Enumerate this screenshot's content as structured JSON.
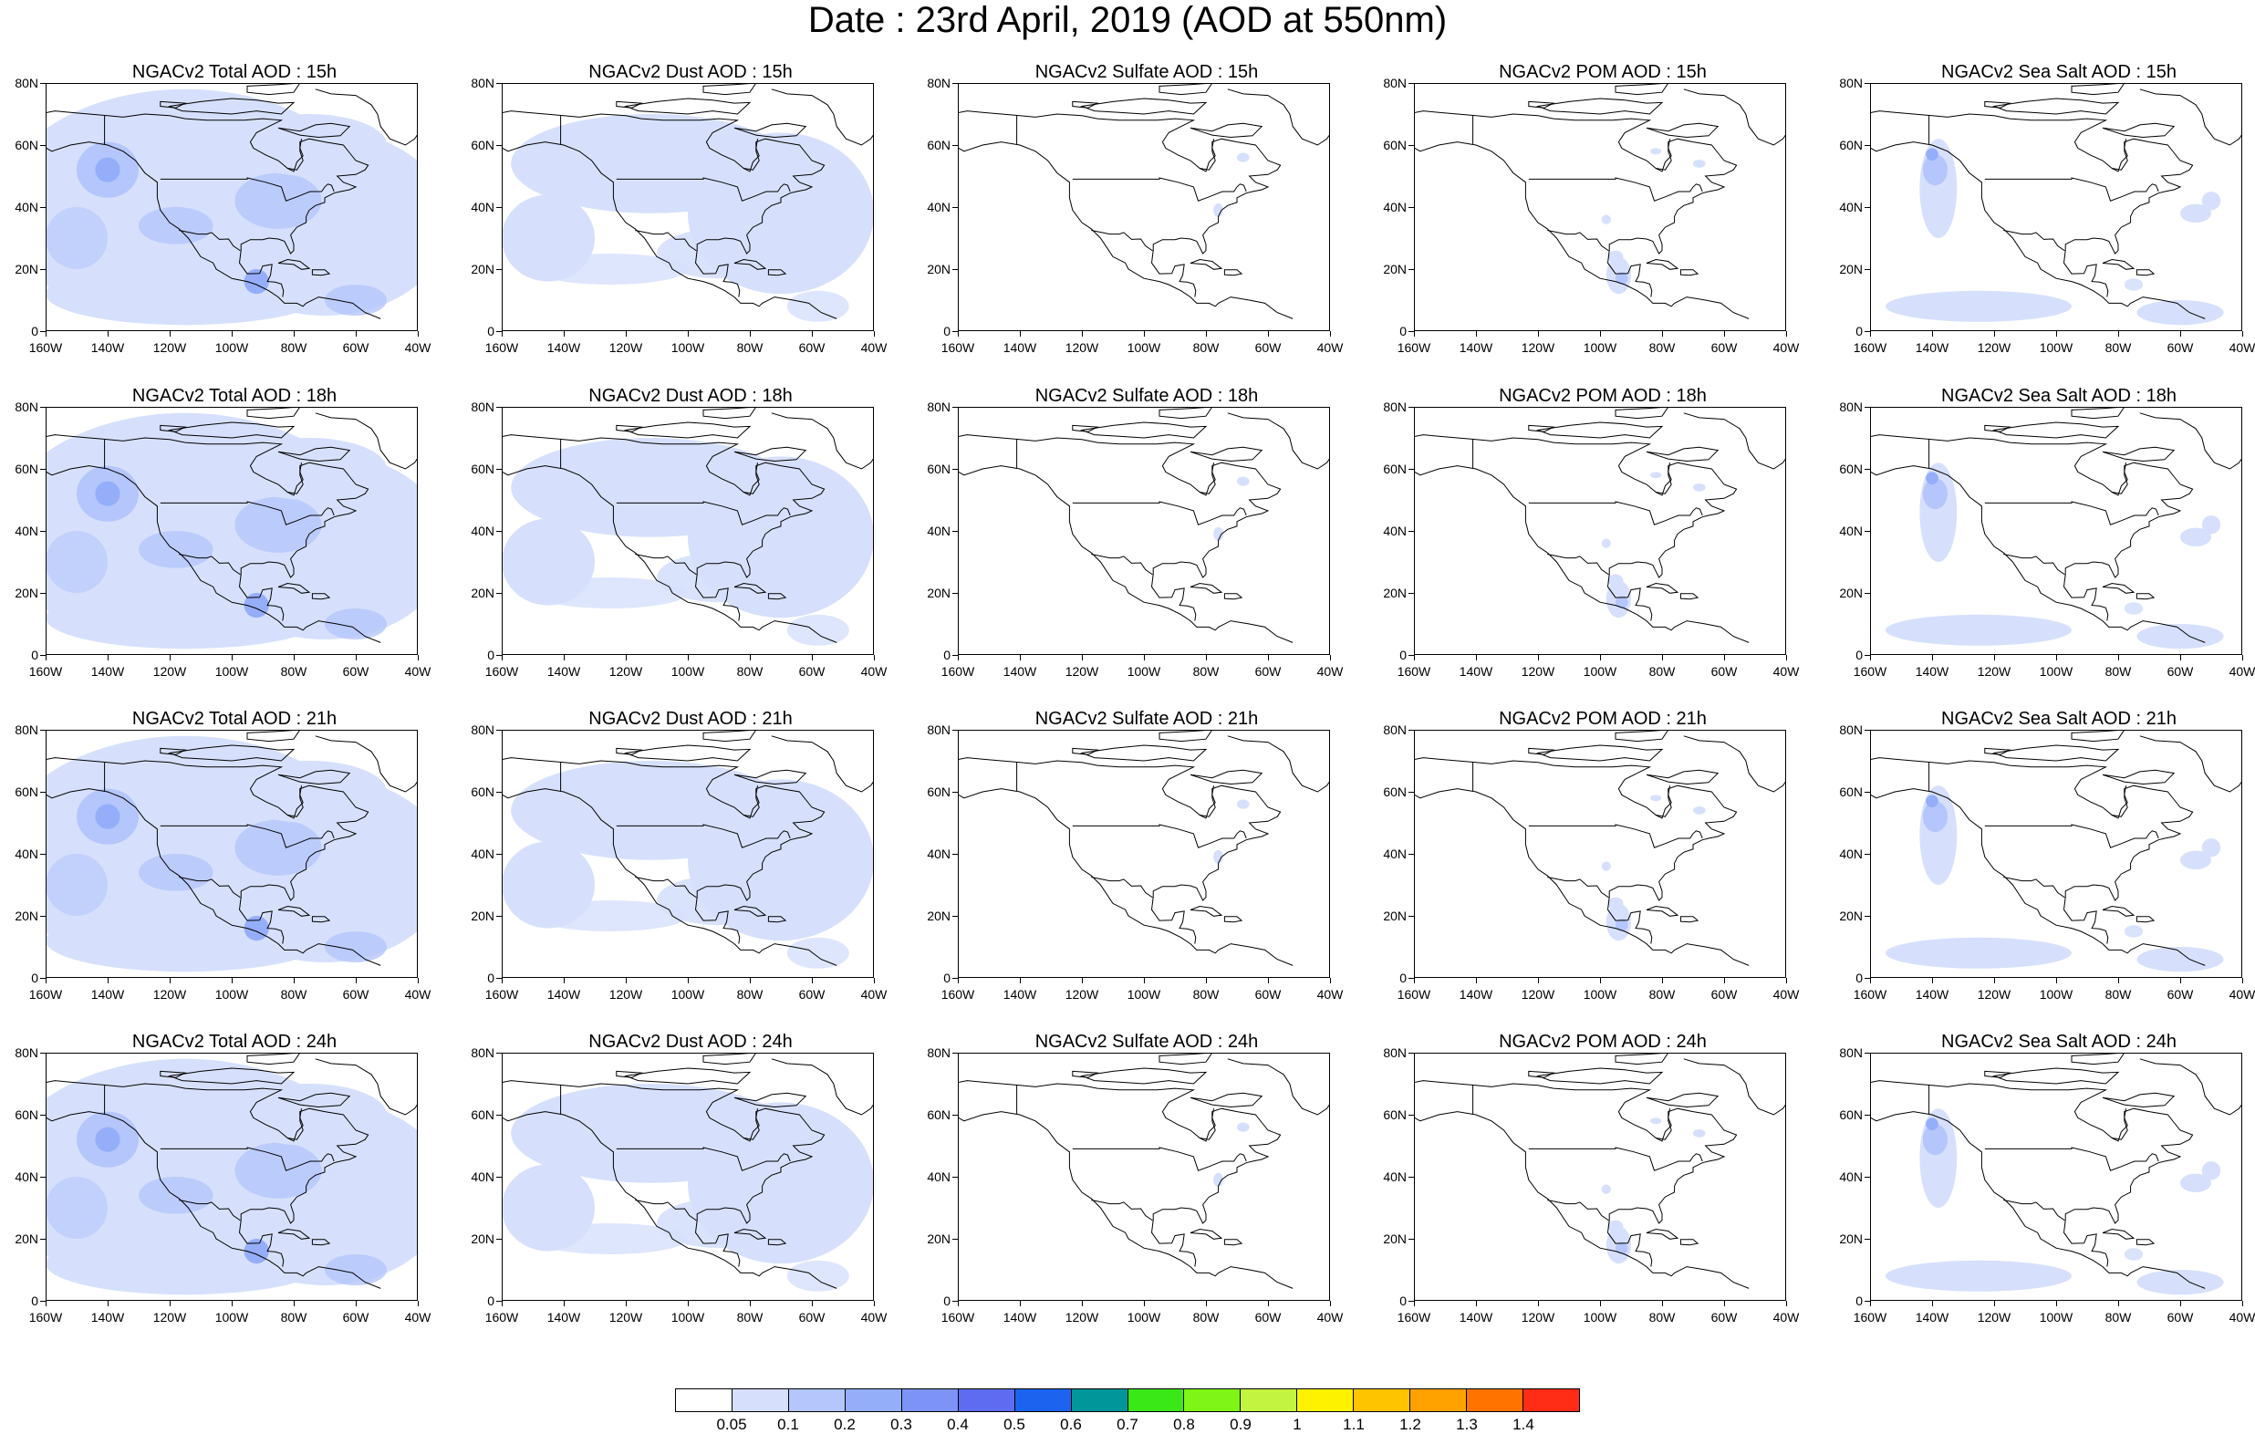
{
  "title": "Date : 23rd April, 2019 (AOD at 550nm)",
  "x_ticks": [
    "160W",
    "140W",
    "120W",
    "100W",
    "80W",
    "60W",
    "40W"
  ],
  "y_ticks": [
    "80N",
    "60N",
    "40N",
    "20N",
    "0"
  ],
  "panels": [
    {
      "title": "NGACv2 Total AOD : 15h",
      "field": "total"
    },
    {
      "title": "NGACv2 Dust AOD : 15h",
      "field": "dust"
    },
    {
      "title": "NGACv2 Sulfate AOD : 15h",
      "field": "sulfate"
    },
    {
      "title": "NGACv2 POM AOD : 15h",
      "field": "pom"
    },
    {
      "title": "NGACv2 Sea Salt AOD : 15h",
      "field": "seasalt"
    },
    {
      "title": "NGACv2 Total AOD : 18h",
      "field": "total"
    },
    {
      "title": "NGACv2 Dust AOD : 18h",
      "field": "dust"
    },
    {
      "title": "NGACv2 Sulfate AOD : 18h",
      "field": "sulfate"
    },
    {
      "title": "NGACv2 POM AOD : 18h",
      "field": "pom"
    },
    {
      "title": "NGACv2 Sea Salt AOD : 18h",
      "field": "seasalt"
    },
    {
      "title": "NGACv2 Total AOD : 21h",
      "field": "total"
    },
    {
      "title": "NGACv2 Dust AOD : 21h",
      "field": "dust"
    },
    {
      "title": "NGACv2 Sulfate AOD : 21h",
      "field": "sulfate"
    },
    {
      "title": "NGACv2 POM AOD : 21h",
      "field": "pom"
    },
    {
      "title": "NGACv2 Sea Salt AOD : 21h",
      "field": "seasalt"
    },
    {
      "title": "NGACv2 Total AOD : 24h",
      "field": "total"
    },
    {
      "title": "NGACv2 Dust AOD : 24h",
      "field": "dust"
    },
    {
      "title": "NGACv2 Sulfate AOD : 24h",
      "field": "sulfate"
    },
    {
      "title": "NGACv2 POM AOD : 24h",
      "field": "pom"
    },
    {
      "title": "NGACv2 Sea Salt  AOD : 24h",
      "field": "seasalt"
    }
  ],
  "colorbar": {
    "colors": [
      "#ffffff",
      "#d6e0fc",
      "#b4c6fb",
      "#94aefa",
      "#7d93f7",
      "#5e6cf2",
      "#1c63f0",
      "#00969a",
      "#39e816",
      "#7ef516",
      "#c3f43f",
      "#fff200",
      "#ffc400",
      "#ffa200",
      "#ff7400",
      "#ff2d16"
    ],
    "labels": [
      "0.05",
      "0.1",
      "0.2",
      "0.3",
      "0.4",
      "0.5",
      "0.6",
      "0.7",
      "0.8",
      "0.9",
      "1",
      "1.1",
      "1.2",
      "1.3",
      "1.4"
    ]
  }
}
